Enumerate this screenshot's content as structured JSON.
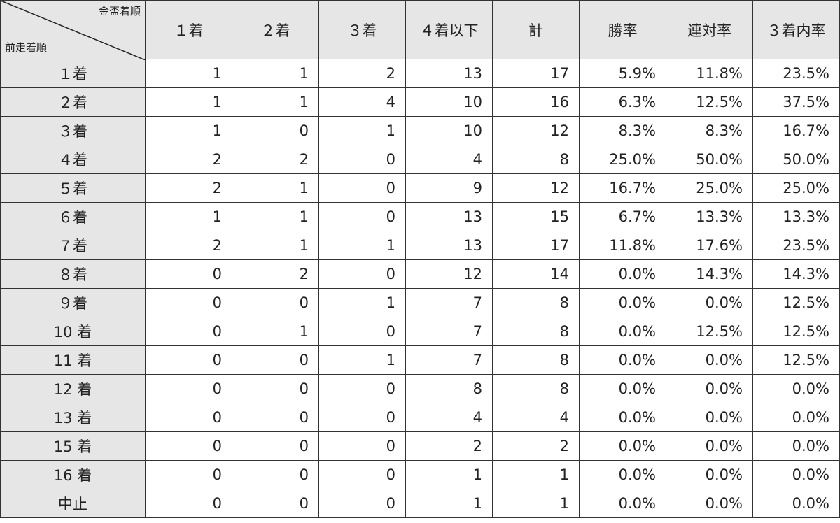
{
  "corner": {
    "column_label": "金盃着順",
    "row_label": "前走着順"
  },
  "columns": [
    "１着",
    "２着",
    "３着",
    "４着以下",
    "計",
    "勝率",
    "連対率",
    "３着内率"
  ],
  "rows": [
    {
      "label": "１着",
      "values": [
        "1",
        "1",
        "2",
        "13",
        "17",
        "5.9%",
        "11.8%",
        "23.5%"
      ]
    },
    {
      "label": "２着",
      "values": [
        "1",
        "1",
        "4",
        "10",
        "16",
        "6.3%",
        "12.5%",
        "37.5%"
      ]
    },
    {
      "label": "３着",
      "values": [
        "1",
        "0",
        "1",
        "10",
        "12",
        "8.3%",
        "8.3%",
        "16.7%"
      ]
    },
    {
      "label": "４着",
      "values": [
        "2",
        "2",
        "0",
        "4",
        "8",
        "25.0%",
        "50.0%",
        "50.0%"
      ]
    },
    {
      "label": "５着",
      "values": [
        "2",
        "1",
        "0",
        "9",
        "12",
        "16.7%",
        "25.0%",
        "25.0%"
      ]
    },
    {
      "label": "６着",
      "values": [
        "1",
        "1",
        "0",
        "13",
        "15",
        "6.7%",
        "13.3%",
        "13.3%"
      ]
    },
    {
      "label": "７着",
      "values": [
        "2",
        "1",
        "1",
        "13",
        "17",
        "11.8%",
        "17.6%",
        "23.5%"
      ]
    },
    {
      "label": "８着",
      "values": [
        "0",
        "2",
        "0",
        "12",
        "14",
        "0.0%",
        "14.3%",
        "14.3%"
      ]
    },
    {
      "label": "９着",
      "values": [
        "0",
        "0",
        "1",
        "7",
        "8",
        "0.0%",
        "0.0%",
        "12.5%"
      ]
    },
    {
      "label": "10 着",
      "values": [
        "0",
        "1",
        "0",
        "7",
        "8",
        "0.0%",
        "12.5%",
        "12.5%"
      ]
    },
    {
      "label": "11 着",
      "values": [
        "0",
        "0",
        "1",
        "7",
        "8",
        "0.0%",
        "0.0%",
        "12.5%"
      ]
    },
    {
      "label": "12 着",
      "values": [
        "0",
        "0",
        "0",
        "8",
        "8",
        "0.0%",
        "0.0%",
        "0.0%"
      ]
    },
    {
      "label": "13 着",
      "values": [
        "0",
        "0",
        "0",
        "4",
        "4",
        "0.0%",
        "0.0%",
        "0.0%"
      ]
    },
    {
      "label": "15 着",
      "values": [
        "0",
        "0",
        "0",
        "2",
        "2",
        "0.0%",
        "0.0%",
        "0.0%"
      ]
    },
    {
      "label": "16 着",
      "values": [
        "0",
        "0",
        "0",
        "1",
        "1",
        "0.0%",
        "0.0%",
        "0.0%"
      ]
    },
    {
      "label": "中止",
      "values": [
        "0",
        "0",
        "0",
        "1",
        "1",
        "0.0%",
        "0.0%",
        "0.0%"
      ]
    }
  ]
}
